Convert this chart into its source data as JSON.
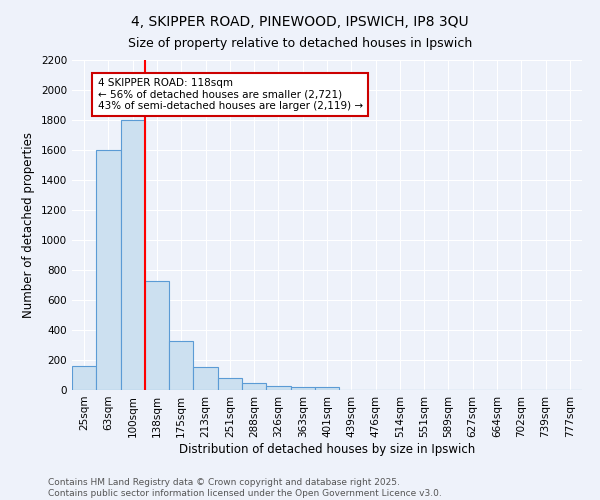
{
  "title": "4, SKIPPER ROAD, PINEWOOD, IPSWICH, IP8 3QU",
  "subtitle": "Size of property relative to detached houses in Ipswich",
  "xlabel": "Distribution of detached houses by size in Ipswich",
  "ylabel": "Number of detached properties",
  "bar_color": "#cce0f0",
  "bar_edge_color": "#5b9bd5",
  "background_color": "#eef2fa",
  "grid_color": "#ffffff",
  "categories": [
    "25sqm",
    "63sqm",
    "100sqm",
    "138sqm",
    "175sqm",
    "213sqm",
    "251sqm",
    "288sqm",
    "326sqm",
    "363sqm",
    "401sqm",
    "439sqm",
    "476sqm",
    "514sqm",
    "551sqm",
    "589sqm",
    "627sqm",
    "664sqm",
    "702sqm",
    "739sqm",
    "777sqm"
  ],
  "values": [
    160,
    1600,
    1800,
    725,
    330,
    155,
    80,
    45,
    25,
    18,
    18,
    0,
    0,
    0,
    0,
    0,
    0,
    0,
    0,
    0,
    0
  ],
  "red_line_x": 2.5,
  "annotation_text": "4 SKIPPER ROAD: 118sqm\n← 56% of detached houses are smaller (2,721)\n43% of semi-detached houses are larger (2,119) →",
  "annotation_box_color": "#ffffff",
  "annotation_box_edge_color": "#cc0000",
  "ylim": [
    0,
    2200
  ],
  "yticks": [
    0,
    200,
    400,
    600,
    800,
    1000,
    1200,
    1400,
    1600,
    1800,
    2000,
    2200
  ],
  "footer_line1": "Contains HM Land Registry data © Crown copyright and database right 2025.",
  "footer_line2": "Contains public sector information licensed under the Open Government Licence v3.0.",
  "title_fontsize": 10,
  "subtitle_fontsize": 9,
  "axis_label_fontsize": 8.5,
  "tick_fontsize": 7.5,
  "annotation_fontsize": 7.5,
  "footer_fontsize": 6.5
}
